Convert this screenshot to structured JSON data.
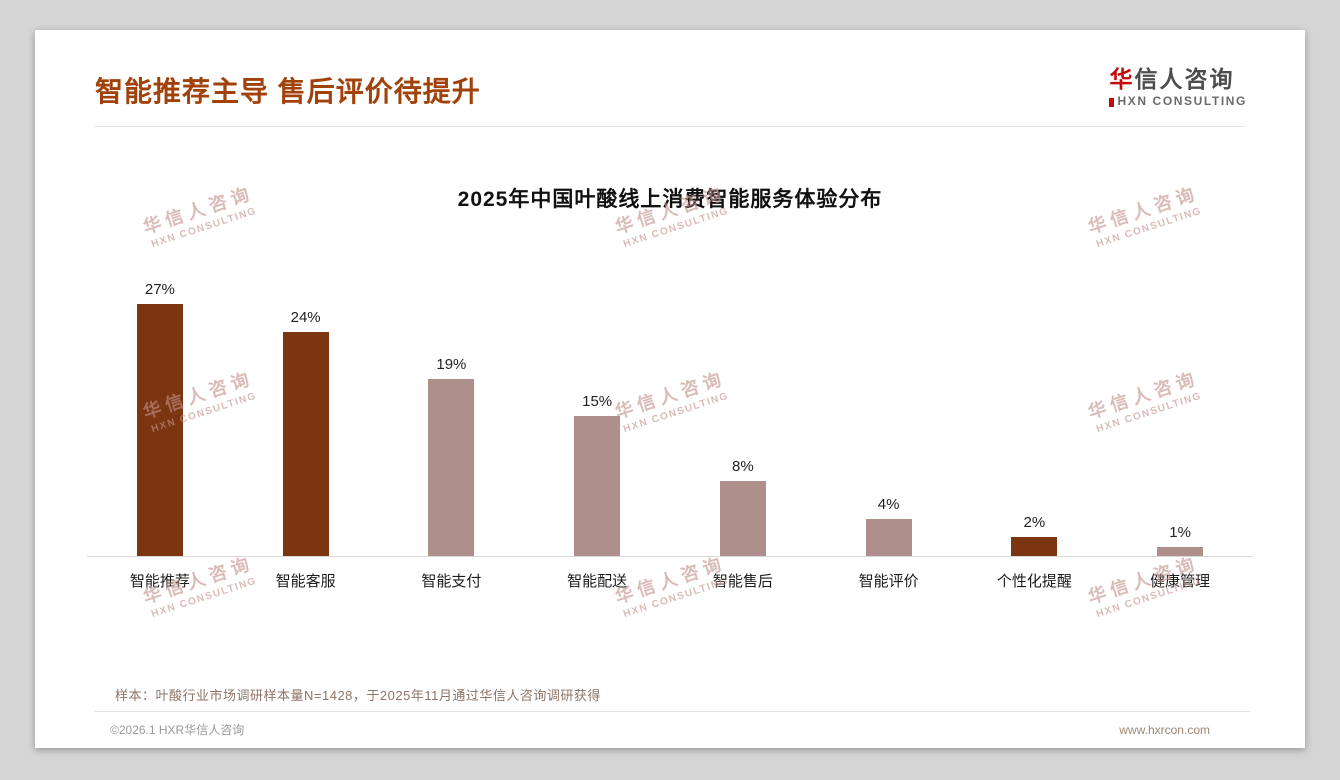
{
  "page": {
    "title": "智能推荐主导 售后评价待提升",
    "logo_cn_first": "华",
    "logo_cn_rest": "信人咨询",
    "logo_en": "HXN CONSULTING",
    "footnote": "样本：叶酸行业市场调研样本量N=1428，于2025年11月通过华信人咨询调研获得",
    "footer_left": "©2026.1 HXR华信人咨询",
    "footer_right": "www.hxrcon.com",
    "watermark_line1": "华信人咨询",
    "watermark_line2": "HXN CONSULTING"
  },
  "colors": {
    "accent": "#A2420B",
    "bar_dark": "#7C3511",
    "bar_light": "#AE8F8B",
    "logo_red": "#C40A0A"
  },
  "chart_data": {
    "type": "bar",
    "title": "2025年中国叶酸线上消费智能服务体验分布",
    "categories": [
      "智能推荐",
      "智能客服",
      "智能支付",
      "智能配送",
      "智能售后",
      "智能评价",
      "个性化提醒",
      "健康管理"
    ],
    "values": [
      27,
      24,
      19,
      15,
      8,
      4,
      2,
      1
    ],
    "value_labels": [
      "27%",
      "24%",
      "19%",
      "15%",
      "8%",
      "4%",
      "2%",
      "1%"
    ],
    "bar_colors": [
      "dark",
      "dark",
      "light",
      "light",
      "light",
      "light",
      "dark",
      "light"
    ],
    "xlabel": "",
    "ylabel": "",
    "ylim": [
      0,
      30
    ],
    "grid": false,
    "legend": false
  }
}
